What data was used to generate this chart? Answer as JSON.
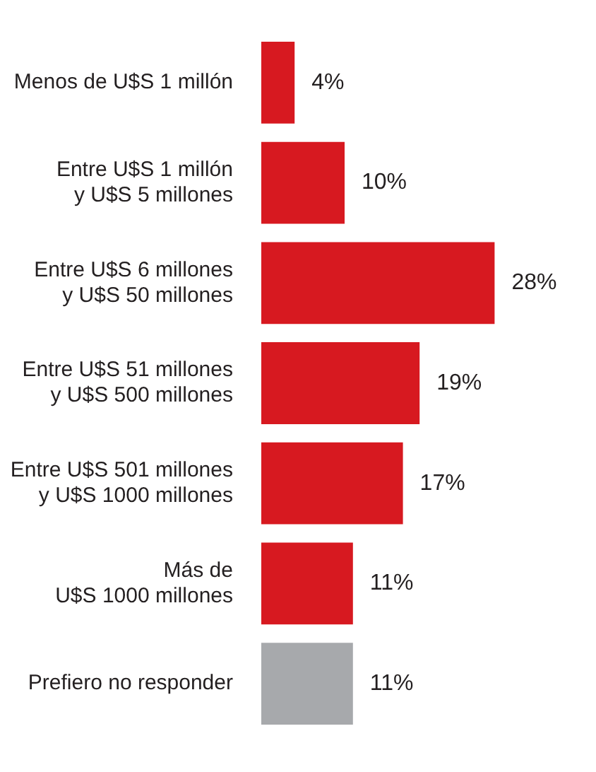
{
  "chart_data": {
    "type": "bar",
    "orientation": "horizontal",
    "categories": [
      "Menos de U$S 1 millón",
      "Entre U$S 1 millón\ny U$S 5 millones",
      "Entre U$S 6 millones\ny U$S 50 millones",
      "Entre U$S 51 millones\ny U$S 500 millones",
      "Entre U$S 501 millones\ny U$S 1000 millones",
      "Más de\nU$S 1000 millones",
      "Prefiero no responder"
    ],
    "values": [
      4,
      10,
      28,
      19,
      17,
      11,
      11
    ],
    "colors": [
      "#d71920",
      "#d71920",
      "#d71920",
      "#d71920",
      "#d71920",
      "#d71920",
      "#a7a9ac"
    ],
    "value_labels": [
      "4%",
      "10%",
      "28%",
      "19%",
      "17%",
      "11%",
      "11%"
    ],
    "legend": false
  }
}
